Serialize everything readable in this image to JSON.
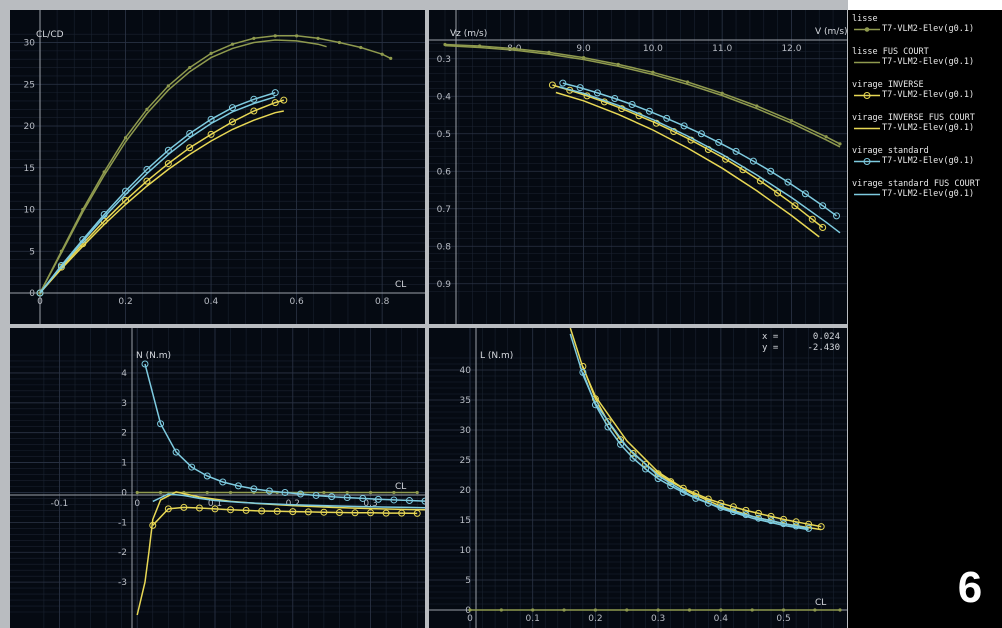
{
  "figure_label": "6",
  "colors": {
    "lisse": "#8f9a4e",
    "lisse_fus_court": "#8f9a4e",
    "virage_inverse": "#e8d855",
    "virage_inverse_fus_court": "#e8d855",
    "virage_standard": "#7ecbe0",
    "virage_standard_fus_court": "#7ecbe0"
  },
  "legend": [
    {
      "name": "lisse",
      "sub": "T7-VLM2-Elev(g0.1)",
      "color": "#8f9a4e",
      "marker": "dot"
    },
    {
      "name": "lisse FUS COURT",
      "sub": "T7-VLM2-Elev(g0.1)",
      "color": "#8f9a4e",
      "marker": "none"
    },
    {
      "name": "virage INVERSE",
      "sub": "T7-VLM2-Elev(g0.1)",
      "color": "#e8d855",
      "marker": "circle"
    },
    {
      "name": "virage INVERSE FUS COURT",
      "sub": "T7-VLM2-Elev(g0.1)",
      "color": "#e8d855",
      "marker": "none"
    },
    {
      "name": "virage standard",
      "sub": "T7-VLM2-Elev(g0.1)",
      "color": "#7ecbe0",
      "marker": "circle"
    },
    {
      "name": "virage standard FUS COURT",
      "sub": "T7-VLM2-Elev(g0.1)",
      "color": "#7ecbe0",
      "marker": "none"
    }
  ],
  "readout": {
    "x_label": "x =",
    "x_value": "0.024",
    "y_label": "y =",
    "y_value": "-2.430"
  },
  "chart_data": [
    {
      "type": "line",
      "ylabel": "CL/CD",
      "xlabel": "CL",
      "xlim": [
        0,
        0.83
      ],
      "ylim": [
        0,
        31.5
      ],
      "xticks": [
        "0",
        "0.2",
        "0.4",
        "0.6",
        "0.8"
      ],
      "yticks": [
        "0",
        "5",
        "10",
        "15",
        "20",
        "25",
        "30"
      ],
      "grid": true,
      "series": [
        {
          "name": "lisse",
          "marker": "dot",
          "x": [
            0,
            0.05,
            0.1,
            0.15,
            0.2,
            0.25,
            0.3,
            0.35,
            0.4,
            0.45,
            0.5,
            0.55,
            0.6,
            0.65,
            0.7,
            0.75,
            0.8,
            0.82
          ],
          "y": [
            0,
            5,
            10,
            14.5,
            18.6,
            22,
            24.8,
            27,
            28.7,
            29.8,
            30.5,
            30.8,
            30.8,
            30.5,
            30,
            29.4,
            28.6,
            28.1
          ]
        },
        {
          "name": "lisse FUS COURT",
          "marker": "none",
          "x": [
            0,
            0.05,
            0.1,
            0.15,
            0.2,
            0.25,
            0.3,
            0.35,
            0.4,
            0.45,
            0.5,
            0.55,
            0.6,
            0.65,
            0.67
          ],
          "y": [
            0,
            4.8,
            9.7,
            14.1,
            18.1,
            21.5,
            24.3,
            26.5,
            28.2,
            29.3,
            30,
            30.3,
            30.2,
            29.8,
            29.5
          ]
        },
        {
          "name": "virage INVERSE",
          "marker": "circle",
          "x": [
            0,
            0.05,
            0.1,
            0.15,
            0.2,
            0.25,
            0.3,
            0.35,
            0.4,
            0.45,
            0.5,
            0.55,
            0.57
          ],
          "y": [
            0,
            3.1,
            5.9,
            8.6,
            11.1,
            13.4,
            15.5,
            17.4,
            19,
            20.5,
            21.8,
            22.8,
            23.1
          ]
        },
        {
          "name": "virage INVERSE FUS COURT",
          "marker": "none",
          "x": [
            0,
            0.05,
            0.1,
            0.15,
            0.2,
            0.25,
            0.3,
            0.35,
            0.4,
            0.45,
            0.5,
            0.55,
            0.57
          ],
          "y": [
            0,
            2.9,
            5.6,
            8.2,
            10.6,
            12.8,
            14.8,
            16.6,
            18.2,
            19.6,
            20.7,
            21.6,
            21.8
          ]
        },
        {
          "name": "virage standard",
          "marker": "circle",
          "x": [
            0,
            0.05,
            0.1,
            0.15,
            0.2,
            0.25,
            0.3,
            0.35,
            0.4,
            0.45,
            0.5,
            0.55
          ],
          "y": [
            0,
            3.3,
            6.4,
            9.4,
            12.2,
            14.8,
            17.1,
            19.1,
            20.8,
            22.2,
            23.2,
            24
          ]
        },
        {
          "name": "virage standard FUS COURT",
          "marker": "none",
          "x": [
            0,
            0.05,
            0.1,
            0.15,
            0.2,
            0.25,
            0.3,
            0.35,
            0.4,
            0.45,
            0.5,
            0.55
          ],
          "y": [
            0,
            3.2,
            6.2,
            9.1,
            11.8,
            14.3,
            16.6,
            18.6,
            20.3,
            21.7,
            22.7,
            23.5
          ]
        }
      ]
    },
    {
      "type": "line",
      "ylabel": "Vz (m/s)",
      "xlabel": "V (m/s)",
      "xlim": [
        7.0,
        12.7
      ],
      "ylim": [
        0.25,
        0.93
      ],
      "y_inverted": true,
      "xticks": [
        "8.0",
        "9.0",
        "10.0",
        "11.0",
        "12.0"
      ],
      "yticks": [
        "0.3",
        "0.4",
        "0.5",
        "0.6",
        "0.7",
        "0.8",
        "0.9"
      ],
      "grid": true,
      "series": [
        {
          "name": "lisse",
          "marker": "dot",
          "x": [
            7.0,
            7.5,
            8.0,
            8.5,
            9.0,
            9.5,
            10.0,
            10.5,
            11.0,
            11.5,
            12.0,
            12.5,
            12.7
          ],
          "y": [
            0.262,
            0.266,
            0.273,
            0.283,
            0.297,
            0.315,
            0.336,
            0.362,
            0.392,
            0.426,
            0.465,
            0.508,
            0.527
          ]
        },
        {
          "name": "lisse FUS COURT",
          "marker": "none",
          "x": [
            7.0,
            7.5,
            8.0,
            8.5,
            9.0,
            9.5,
            10.0,
            10.5,
            11.0,
            11.5,
            12.0,
            12.5,
            12.7
          ],
          "y": [
            0.265,
            0.27,
            0.277,
            0.288,
            0.302,
            0.32,
            0.342,
            0.368,
            0.398,
            0.433,
            0.472,
            0.516,
            0.535
          ]
        },
        {
          "name": "virage INVERSE",
          "marker": "circle",
          "x": [
            8.55,
            8.8,
            9.05,
            9.3,
            9.55,
            9.8,
            10.05,
            10.3,
            10.55,
            10.8,
            11.05,
            11.3,
            11.55,
            11.8,
            12.05,
            12.3,
            12.45
          ],
          "y": [
            0.37,
            0.384,
            0.399,
            0.415,
            0.433,
            0.452,
            0.472,
            0.494,
            0.517,
            0.542,
            0.568,
            0.596,
            0.626,
            0.658,
            0.692,
            0.728,
            0.75
          ]
        },
        {
          "name": "virage INVERSE FUS COURT",
          "marker": "none",
          "x": [
            8.6,
            9.0,
            9.5,
            10.0,
            10.5,
            11.0,
            11.5,
            12.0,
            12.4
          ],
          "y": [
            0.39,
            0.412,
            0.448,
            0.49,
            0.538,
            0.592,
            0.652,
            0.718,
            0.775
          ]
        },
        {
          "name": "virage standard",
          "marker": "circle",
          "x": [
            8.7,
            8.95,
            9.2,
            9.45,
            9.7,
            9.95,
            10.2,
            10.45,
            10.7,
            10.95,
            11.2,
            11.45,
            11.7,
            11.95,
            12.2,
            12.45,
            12.65
          ],
          "y": [
            0.365,
            0.377,
            0.391,
            0.406,
            0.422,
            0.44,
            0.459,
            0.479,
            0.5,
            0.523,
            0.547,
            0.573,
            0.6,
            0.629,
            0.66,
            0.692,
            0.719
          ]
        },
        {
          "name": "virage standard FUS COURT",
          "marker": "none",
          "x": [
            8.65,
            9.0,
            9.5,
            10.0,
            10.5,
            11.0,
            11.5,
            12.0,
            12.5,
            12.7
          ],
          "y": [
            0.375,
            0.392,
            0.424,
            0.462,
            0.506,
            0.555,
            0.61,
            0.67,
            0.736,
            0.764
          ]
        }
      ]
    },
    {
      "type": "line",
      "ylabel": "N (N.m)",
      "xlabel": "CL",
      "xlim": [
        -0.125,
        0.37
      ],
      "ylim": [
        -4.1,
        4.6
      ],
      "xticks": [
        "-0.1",
        "0",
        "0.1",
        "0.2",
        "0.3"
      ],
      "yticks": [
        "4",
        "3",
        "2",
        "1",
        "0",
        "-1",
        "-2",
        "-3"
      ],
      "grid": true,
      "series": [
        {
          "name": "lisse",
          "marker": "dot",
          "x": [
            0,
            0.03,
            0.06,
            0.09,
            0.12,
            0.15,
            0.18,
            0.21,
            0.24,
            0.27,
            0.3,
            0.33,
            0.36
          ],
          "y": [
            0,
            0,
            0,
            0,
            0,
            0,
            0,
            0,
            0,
            0,
            0,
            0,
            0
          ]
        },
        {
          "name": "virage INVERSE",
          "marker": "circle",
          "x": [
            0.02,
            0.04,
            0.06,
            0.08,
            0.1,
            0.12,
            0.14,
            0.16,
            0.18,
            0.2,
            0.22,
            0.24,
            0.26,
            0.28,
            0.3,
            0.32,
            0.34,
            0.36
          ],
          "y": [
            -1.1,
            -0.55,
            -0.5,
            -0.52,
            -0.55,
            -0.58,
            -0.6,
            -0.62,
            -0.63,
            -0.64,
            -0.65,
            -0.66,
            -0.67,
            -0.68,
            -0.68,
            -0.69,
            -0.69,
            -0.7
          ]
        },
        {
          "name": "virage INVERSE FUS COURT",
          "marker": "none",
          "x": [
            0.0,
            0.01,
            0.015,
            0.02,
            0.03,
            0.05,
            0.08,
            0.12,
            0.16,
            0.2,
            0.25,
            0.3,
            0.35,
            0.37
          ],
          "y": [
            -4.1,
            -3.0,
            -2.0,
            -0.9,
            -0.25,
            0.02,
            -0.15,
            -0.3,
            -0.38,
            -0.44,
            -0.5,
            -0.54,
            -0.57,
            -0.58
          ]
        },
        {
          "name": "virage standard",
          "marker": "circle",
          "x": [
            0.01,
            0.03,
            0.05,
            0.07,
            0.09,
            0.11,
            0.13,
            0.15,
            0.17,
            0.19,
            0.21,
            0.23,
            0.25,
            0.27,
            0.29,
            0.31,
            0.33,
            0.35,
            0.37
          ],
          "y": [
            4.3,
            2.3,
            1.35,
            0.85,
            0.55,
            0.35,
            0.22,
            0.12,
            0.05,
            0.0,
            -0.05,
            -0.1,
            -0.14,
            -0.17,
            -0.2,
            -0.23,
            -0.25,
            -0.27,
            -0.29
          ]
        },
        {
          "name": "virage standard FUS COURT",
          "marker": "none",
          "x": [
            0.02,
            0.04,
            0.06,
            0.08,
            0.1,
            0.13,
            0.16,
            0.2,
            0.25,
            0.3,
            0.35,
            0.37
          ],
          "y": [
            -0.3,
            -0.05,
            -0.1,
            -0.2,
            -0.27,
            -0.33,
            -0.37,
            -0.41,
            -0.45,
            -0.48,
            -0.5,
            -0.51
          ]
        }
      ]
    },
    {
      "type": "line",
      "ylabel": "L (N.m)",
      "xlabel": "CL",
      "xlim": [
        0,
        0.59
      ],
      "ylim": [
        0,
        42.5
      ],
      "xticks": [
        "0",
        "0.1",
        "0.2",
        "0.3",
        "0.4",
        "0.5"
      ],
      "yticks": [
        "0",
        "5",
        "10",
        "15",
        "20",
        "25",
        "30",
        "35",
        "40"
      ],
      "grid": true,
      "series": [
        {
          "name": "lisse",
          "marker": "dot",
          "x": [
            0,
            0.05,
            0.1,
            0.15,
            0.2,
            0.25,
            0.3,
            0.35,
            0.4,
            0.45,
            0.5,
            0.55,
            0.59
          ],
          "y": [
            0,
            0,
            0,
            0,
            0,
            0,
            0,
            0,
            0,
            0,
            0,
            0,
            0
          ]
        },
        {
          "name": "virage INVERSE",
          "marker": "circle",
          "x": [
            0.18,
            0.2,
            0.22,
            0.24,
            0.26,
            0.28,
            0.3,
            0.32,
            0.34,
            0.36,
            0.38,
            0.4,
            0.42,
            0.44,
            0.46,
            0.48,
            0.5,
            0.52,
            0.54,
            0.56
          ],
          "y": [
            40.6,
            35.2,
            31.4,
            28.4,
            26.1,
            24.3,
            22.7,
            21.4,
            20.3,
            19.4,
            18.5,
            17.8,
            17.2,
            16.6,
            16.1,
            15.6,
            15.1,
            14.7,
            14.3,
            13.9
          ]
        },
        {
          "name": "virage INVERSE FUS COURT",
          "marker": "none",
          "x": [
            0.16,
            0.18,
            0.2,
            0.25,
            0.3,
            0.35,
            0.4,
            0.45,
            0.5,
            0.56
          ],
          "y": [
            47,
            40.4,
            35.6,
            28.2,
            23,
            19.6,
            17.3,
            15.6,
            14.4,
            13.4
          ]
        },
        {
          "name": "virage standard",
          "marker": "circle",
          "x": [
            0.18,
            0.2,
            0.22,
            0.24,
            0.26,
            0.28,
            0.3,
            0.32,
            0.34,
            0.36,
            0.38,
            0.4,
            0.42,
            0.44,
            0.46,
            0.48,
            0.5,
            0.52,
            0.54
          ],
          "y": [
            39.6,
            34.2,
            30.5,
            27.6,
            25.3,
            23.5,
            21.9,
            20.7,
            19.6,
            18.6,
            17.8,
            17.1,
            16.4,
            15.9,
            15.3,
            14.9,
            14.4,
            14,
            13.6
          ]
        },
        {
          "name": "virage standard FUS COURT",
          "marker": "none",
          "x": [
            0.16,
            0.18,
            0.2,
            0.25,
            0.3,
            0.35,
            0.4,
            0.45,
            0.5,
            0.54
          ],
          "y": [
            46,
            39.2,
            34.4,
            27.2,
            22.4,
            19.2,
            16.9,
            15.3,
            14.1,
            13.4
          ]
        }
      ]
    }
  ]
}
